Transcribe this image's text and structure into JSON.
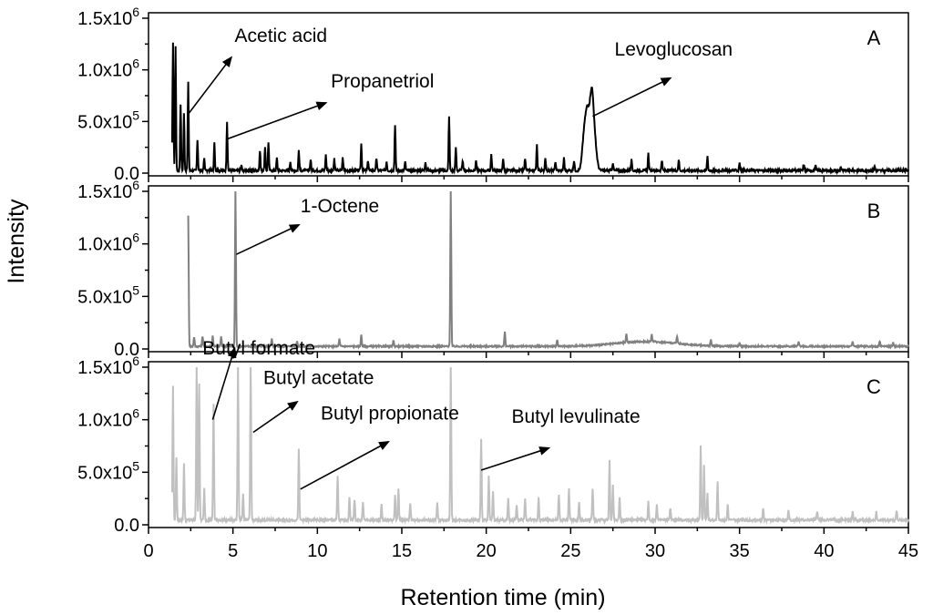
{
  "chart_data": {
    "type": "line",
    "xlabel": "Retention time (min)",
    "ylabel": "Intensity",
    "xlim": [
      0,
      45
    ],
    "x_ticks": [
      0,
      5,
      10,
      15,
      20,
      25,
      30,
      35,
      40,
      45
    ],
    "x_tick_labels": [
      "0",
      "5",
      "10",
      "15",
      "20",
      "25",
      "30",
      "35",
      "40",
      "45"
    ],
    "ylim": [
      0,
      1500000
    ],
    "y_ticks": [
      0,
      500000,
      1000000,
      1500000
    ],
    "y_tick_labels": [
      {
        "mantissa": "0.0",
        "exponent": ""
      },
      {
        "mantissa": "5.0x10",
        "exponent": "5"
      },
      {
        "mantissa": "1.0x10",
        "exponent": "6"
      },
      {
        "mantissa": "1.5x10",
        "exponent": "6"
      }
    ],
    "grid": false,
    "panels": [
      {
        "label": "A",
        "color": "#000000",
        "baseline": 25000,
        "start": 1.4,
        "noise": 12000,
        "hump": null,
        "peaks": [
          [
            1.45,
            1250000
          ],
          [
            1.6,
            1200000
          ],
          [
            1.9,
            650000
          ],
          [
            2.1,
            550000
          ],
          [
            2.35,
            850000
          ],
          [
            2.9,
            300000
          ],
          [
            3.3,
            120000
          ],
          [
            3.9,
            280000
          ],
          [
            4.65,
            480000
          ],
          [
            5.5,
            50000
          ],
          [
            6.6,
            200000
          ],
          [
            6.9,
            220000
          ],
          [
            7.1,
            280000
          ],
          [
            7.6,
            120000
          ],
          [
            8.4,
            90000
          ],
          [
            8.9,
            200000
          ],
          [
            9.6,
            110000
          ],
          [
            10.5,
            150000
          ],
          [
            11.0,
            110000
          ],
          [
            11.5,
            120000
          ],
          [
            12.6,
            260000
          ],
          [
            13.0,
            100000
          ],
          [
            13.5,
            120000
          ],
          [
            14.1,
            90000
          ],
          [
            14.6,
            450000
          ],
          [
            15.2,
            80000
          ],
          [
            16.4,
            90000
          ],
          [
            17.8,
            520000
          ],
          [
            18.2,
            220000
          ],
          [
            18.6,
            100000
          ],
          [
            19.4,
            100000
          ],
          [
            20.3,
            160000
          ],
          [
            21.0,
            120000
          ],
          [
            22.3,
            120000
          ],
          [
            23.0,
            250000
          ],
          [
            23.5,
            130000
          ],
          [
            24.1,
            90000
          ],
          [
            24.6,
            120000
          ],
          [
            25.2,
            100000
          ],
          [
            25.8,
            330000
          ],
          [
            26.0,
            500000
          ],
          [
            26.25,
            720000
          ],
          [
            26.45,
            200000
          ],
          [
            27.5,
            80000
          ],
          [
            28.6,
            100000
          ],
          [
            29.6,
            170000
          ],
          [
            30.4,
            100000
          ],
          [
            31.4,
            110000
          ],
          [
            33.1,
            140000
          ],
          [
            35.0,
            80000
          ],
          [
            38.8,
            60000
          ],
          [
            39.5,
            45000
          ],
          [
            41.0,
            40000
          ],
          [
            43.0,
            45000
          ]
        ],
        "annotations": [
          {
            "text": "Acetic acid",
            "peak_x": 2.3,
            "peak_y": 560000,
            "label_x": 5.1,
            "label_y": 1270000,
            "arrow_x": 4.9,
            "arrow_y": 1120000
          },
          {
            "text": "Propanetriol",
            "peak_x": 4.65,
            "peak_y": 330000,
            "label_x": 10.8,
            "label_y": 830000,
            "arrow_x": 10.5,
            "arrow_y": 680000
          },
          {
            "text": "Levoglucosan",
            "peak_x": 26.3,
            "peak_y": 550000,
            "label_x": 27.6,
            "label_y": 1140000,
            "arrow_x": 30.9,
            "arrow_y": 920000
          }
        ]
      },
      {
        "label": "B",
        "color": "#808080",
        "baseline": 25000,
        "start": 2.35,
        "noise": 7000,
        "hump": {
          "center": 29.5,
          "width": 2.6,
          "height": 45000
        },
        "peaks": [
          [
            2.35,
            1250000
          ],
          [
            2.7,
            90000
          ],
          [
            3.2,
            100000
          ],
          [
            3.8,
            100000
          ],
          [
            4.3,
            90000
          ],
          [
            5.15,
            1500000
          ],
          [
            7.3,
            70000
          ],
          [
            8.8,
            50000
          ],
          [
            11.3,
            70000
          ],
          [
            12.6,
            110000
          ],
          [
            14.5,
            60000
          ],
          [
            17.9,
            1500000
          ],
          [
            21.1,
            140000
          ],
          [
            24.2,
            60000
          ],
          [
            28.3,
            80000
          ],
          [
            29.8,
            70000
          ],
          [
            31.3,
            70000
          ],
          [
            33.3,
            60000
          ],
          [
            35.0,
            40000
          ],
          [
            38.5,
            40000
          ],
          [
            41.7,
            50000
          ],
          [
            43.3,
            50000
          ],
          [
            44.1,
            40000
          ]
        ],
        "annotations": [
          {
            "text": "1-Octene",
            "peak_x": 5.2,
            "peak_y": 900000,
            "label_x": 9.0,
            "label_y": 1300000,
            "arrow_x": 8.9,
            "arrow_y": 1180000
          }
        ]
      },
      {
        "label": "C",
        "color": "#c0c0c0",
        "baseline": 45000,
        "start": 1.4,
        "noise": 12000,
        "hump": null,
        "peaks": [
          [
            1.45,
            1280000
          ],
          [
            1.65,
            600000
          ],
          [
            2.1,
            550000
          ],
          [
            2.85,
            1500000
          ],
          [
            3.0,
            1300000
          ],
          [
            3.3,
            300000
          ],
          [
            3.85,
            1100000
          ],
          [
            5.3,
            1500000
          ],
          [
            5.6,
            250000
          ],
          [
            6.05,
            1500000
          ],
          [
            8.9,
            670000
          ],
          [
            11.2,
            420000
          ],
          [
            11.9,
            220000
          ],
          [
            12.2,
            200000
          ],
          [
            12.7,
            170000
          ],
          [
            13.8,
            150000
          ],
          [
            14.6,
            230000
          ],
          [
            14.8,
            290000
          ],
          [
            15.5,
            160000
          ],
          [
            17.1,
            160000
          ],
          [
            17.9,
            1500000
          ],
          [
            19.7,
            780000
          ],
          [
            20.15,
            420000
          ],
          [
            20.4,
            270000
          ],
          [
            21.3,
            200000
          ],
          [
            21.8,
            140000
          ],
          [
            22.3,
            200000
          ],
          [
            23.1,
            220000
          ],
          [
            24.3,
            240000
          ],
          [
            24.9,
            300000
          ],
          [
            25.5,
            160000
          ],
          [
            26.3,
            300000
          ],
          [
            27.3,
            560000
          ],
          [
            27.5,
            340000
          ],
          [
            27.9,
            220000
          ],
          [
            29.6,
            180000
          ],
          [
            30.1,
            150000
          ],
          [
            30.9,
            120000
          ],
          [
            32.7,
            720000
          ],
          [
            32.9,
            520000
          ],
          [
            33.1,
            260000
          ],
          [
            33.7,
            360000
          ],
          [
            34.3,
            150000
          ],
          [
            36.4,
            120000
          ],
          [
            37.9,
            100000
          ],
          [
            39.6,
            90000
          ],
          [
            41.7,
            90000
          ],
          [
            43.1,
            80000
          ],
          [
            44.3,
            90000
          ]
        ],
        "annotations": [
          {
            "text": "Butyl formate",
            "peak_x": 3.8,
            "peak_y": 1000000,
            "label_x": 3.2,
            "label_y": 1620000,
            "arrow_x": 5.1,
            "arrow_y": 1680000
          },
          {
            "text": "Butyl acetate",
            "peak_x": 6.2,
            "peak_y": 880000,
            "label_x": 6.8,
            "label_y": 1340000,
            "arrow_x": 8.8,
            "arrow_y": 1170000
          },
          {
            "text": "Butyl propionate",
            "peak_x": 9.0,
            "peak_y": 340000,
            "label_x": 10.2,
            "label_y": 1000000,
            "arrow_x": 14.2,
            "arrow_y": 790000
          },
          {
            "text": "Butyl levulinate",
            "peak_x": 19.7,
            "peak_y": 520000,
            "label_x": 21.5,
            "label_y": 970000,
            "arrow_x": 23.7,
            "arrow_y": 730000
          }
        ]
      }
    ]
  }
}
